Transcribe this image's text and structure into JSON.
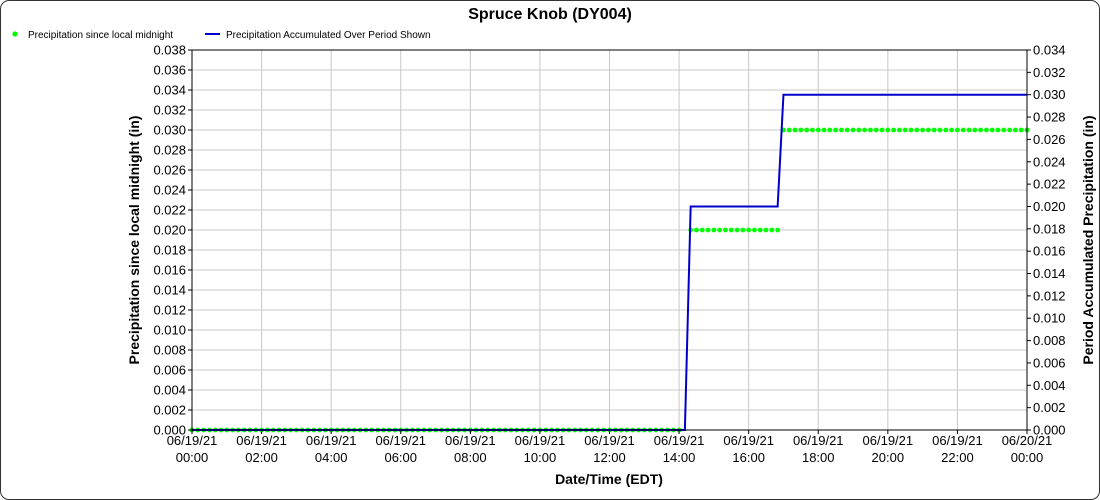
{
  "chart_data": {
    "type": "line",
    "title": "Spruce Knob (DY004)",
    "xlabel": "Date/Time (EDT)",
    "ylabel_left": "Precipitation since local midnight (in)",
    "ylabel_right": "Period Accumulated Precipitation (in)",
    "x_range_hours": [
      0,
      24
    ],
    "x_tick_hours": [
      0,
      2,
      4,
      6,
      8,
      10,
      12,
      14,
      16,
      18,
      20,
      22,
      24
    ],
    "x_tick_labels": [
      [
        "06/19/21",
        "00:00"
      ],
      [
        "06/19/21",
        "02:00"
      ],
      [
        "06/19/21",
        "04:00"
      ],
      [
        "06/19/21",
        "06:00"
      ],
      [
        "06/19/21",
        "08:00"
      ],
      [
        "06/19/21",
        "10:00"
      ],
      [
        "06/19/21",
        "12:00"
      ],
      [
        "06/19/21",
        "14:00"
      ],
      [
        "06/19/21",
        "16:00"
      ],
      [
        "06/19/21",
        "18:00"
      ],
      [
        "06/19/21",
        "20:00"
      ],
      [
        "06/19/21",
        "22:00"
      ],
      [
        "06/20/21",
        "00:00"
      ]
    ],
    "ylim_left": [
      0,
      0.038
    ],
    "y_left_ticks": [
      "0.000",
      "0.002",
      "0.004",
      "0.006",
      "0.008",
      "0.010",
      "0.012",
      "0.014",
      "0.016",
      "0.018",
      "0.020",
      "0.022",
      "0.024",
      "0.026",
      "0.028",
      "0.030",
      "0.032",
      "0.034",
      "0.036",
      "0.038"
    ],
    "ylim_right": [
      0,
      0.034
    ],
    "y_right_ticks": [
      "0.000",
      "0.002",
      "0.004",
      "0.006",
      "0.008",
      "0.010",
      "0.012",
      "0.014",
      "0.016",
      "0.018",
      "0.020",
      "0.022",
      "0.024",
      "0.026",
      "0.028",
      "0.030",
      "0.032",
      "0.034"
    ],
    "grid": true,
    "legend_position": "top-left",
    "series": [
      {
        "name": "Precipitation since local midnight",
        "type": "scatter",
        "axis": "left",
        "color": "#00ff00",
        "interval_minutes": 10,
        "segments": [
          {
            "from_hour": 0,
            "to_hour": 14.0,
            "value": 0.0
          },
          {
            "from_hour": 14.333,
            "to_hour": 16.833,
            "value": 0.02
          },
          {
            "from_hour": 17.0,
            "to_hour": 24.0,
            "value": 0.03
          }
        ]
      },
      {
        "name": "Precipitation Accumulated Over Period Shown",
        "type": "line",
        "axis": "right",
        "color": "#0000cc",
        "points": [
          [
            0,
            0.0
          ],
          [
            14.167,
            0.0
          ],
          [
            14.333,
            0.02
          ],
          [
            16.833,
            0.02
          ],
          [
            17.0,
            0.03
          ],
          [
            24.0,
            0.03
          ]
        ]
      }
    ]
  }
}
